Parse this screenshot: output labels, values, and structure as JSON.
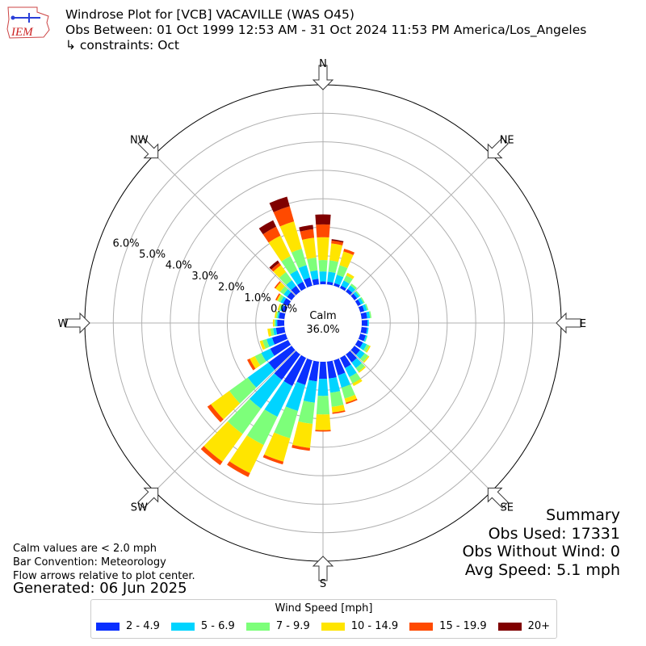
{
  "header": {
    "title_line1": "Windrose Plot for [VCB] VACAVILLE (WAS O45)",
    "title_line2": "Obs Between: 01 Oct 1999 12:53 AM - 31 Oct 2024 11:53 PM America/Los_Angeles",
    "title_line3": "↳ constraints: Oct",
    "logo_text": "IEM"
  },
  "notes": {
    "calm_note": "Calm values are < 2.0 mph",
    "bar_convention": "Bar Convention: Meteorology",
    "flow_arrows": "Flow arrows relative to plot center.",
    "generated": "Generated: 06 Jun 2025"
  },
  "summary": {
    "heading": "Summary",
    "obs_used": "Obs Used: 17331",
    "obs_without_wind": "Obs Without Wind: 0",
    "avg_speed": "Avg Speed: 5.1 mph"
  },
  "center": {
    "label": "Calm",
    "value": "36.0%"
  },
  "legend": {
    "title": "Wind Speed [mph]",
    "items": [
      {
        "label": "2 - 4.9",
        "color": "#0a2fff"
      },
      {
        "label": "5 - 6.9",
        "color": "#00d4ff"
      },
      {
        "label": "7 - 9.9",
        "color": "#7dff7a"
      },
      {
        "label": "10 - 14.9",
        "color": "#ffe500"
      },
      {
        "label": "15 - 19.9",
        "color": "#ff4a00"
      },
      {
        "label": "20+",
        "color": "#800000"
      }
    ]
  },
  "chart_data": {
    "type": "windrose",
    "directions": [
      {
        "label": "N",
        "angle": 0
      },
      {
        "label": "NE",
        "angle": 45
      },
      {
        "label": "E",
        "angle": 90
      },
      {
        "label": "SE",
        "angle": 135
      },
      {
        "label": "S",
        "angle": 180
      },
      {
        "label": "SW",
        "angle": 225
      },
      {
        "label": "W",
        "angle": 270
      },
      {
        "label": "NW",
        "angle": 315
      }
    ],
    "radial_ticks": [
      "0.0%",
      "1.0%",
      "2.0%",
      "3.0%",
      "4.0%",
      "5.0%",
      "6.0%"
    ],
    "radial_max": 7.0,
    "speed_bins": [
      "2 - 4.9",
      "5 - 6.9",
      "7 - 9.9",
      "10 - 14.9",
      "15 - 19.9",
      "20+"
    ],
    "bin_width_deg": 10,
    "bars": [
      {
        "dir": 0,
        "values": [
          0.1,
          0.35,
          0.4,
          0.8,
          0.45,
          0.35
        ]
      },
      {
        "dir": 10,
        "values": [
          0.1,
          0.35,
          0.4,
          0.6,
          0.1,
          0.05
        ]
      },
      {
        "dir": 20,
        "values": [
          0.1,
          0.3,
          0.35,
          0.5,
          0.1,
          0.0
        ]
      },
      {
        "dir": 30,
        "values": [
          0.1,
          0.2,
          0.2,
          0.1,
          0.0,
          0.0
        ]
      },
      {
        "dir": 40,
        "values": [
          0.12,
          0.15,
          0.08,
          0.0,
          0.0,
          0.0
        ]
      },
      {
        "dir": 50,
        "values": [
          0.12,
          0.1,
          0.05,
          0.0,
          0.0,
          0.0
        ]
      },
      {
        "dir": 60,
        "values": [
          0.12,
          0.1,
          0.05,
          0.0,
          0.0,
          0.0
        ]
      },
      {
        "dir": 70,
        "values": [
          0.15,
          0.1,
          0.05,
          0.0,
          0.0,
          0.0
        ]
      },
      {
        "dir": 80,
        "values": [
          0.2,
          0.1,
          0.05,
          0.0,
          0.0,
          0.0
        ]
      },
      {
        "dir": 90,
        "values": [
          0.2,
          0.05,
          0.0,
          0.0,
          0.0,
          0.0
        ]
      },
      {
        "dir": 100,
        "values": [
          0.2,
          0.05,
          0.0,
          0.0,
          0.0,
          0.0
        ]
      },
      {
        "dir": 110,
        "values": [
          0.2,
          0.05,
          0.02,
          0.0,
          0.0,
          0.0
        ]
      },
      {
        "dir": 120,
        "values": [
          0.2,
          0.15,
          0.1,
          0.05,
          0.0,
          0.0
        ]
      },
      {
        "dir": 130,
        "values": [
          0.25,
          0.2,
          0.15,
          0.05,
          0.0,
          0.0
        ]
      },
      {
        "dir": 140,
        "values": [
          0.35,
          0.25,
          0.15,
          0.05,
          0.0,
          0.0
        ]
      },
      {
        "dir": 150,
        "values": [
          0.4,
          0.35,
          0.25,
          0.1,
          0.0,
          0.0
        ]
      },
      {
        "dir": 160,
        "values": [
          0.55,
          0.45,
          0.4,
          0.15,
          0.05,
          0.0
        ]
      },
      {
        "dir": 170,
        "values": [
          0.6,
          0.5,
          0.5,
          0.2,
          0.05,
          0.0
        ]
      },
      {
        "dir": 180,
        "values": [
          0.6,
          0.6,
          0.65,
          0.55,
          0.05,
          0.0
        ]
      },
      {
        "dir": 190,
        "values": [
          0.7,
          0.75,
          0.75,
          0.85,
          0.1,
          0.0
        ]
      },
      {
        "dir": 200,
        "values": [
          0.9,
          0.95,
          1.0,
          0.85,
          0.1,
          0.0
        ]
      },
      {
        "dir": 210,
        "values": [
          1.1,
          1.2,
          1.1,
          1.1,
          0.15,
          0.0
        ]
      },
      {
        "dir": 220,
        "values": [
          1.1,
          1.25,
          1.1,
          1.2,
          0.15,
          0.0
        ]
      },
      {
        "dir": 230,
        "values": [
          1.0,
          0.9,
          0.8,
          0.8,
          0.15,
          0.0
        ]
      },
      {
        "dir": 240,
        "values": [
          0.7,
          0.35,
          0.25,
          0.2,
          0.1,
          0.0
        ]
      },
      {
        "dir": 250,
        "values": [
          0.5,
          0.2,
          0.15,
          0.1,
          0.0,
          0.0
        ]
      },
      {
        "dir": 260,
        "values": [
          0.3,
          0.1,
          0.1,
          0.1,
          0.0,
          0.0
        ]
      },
      {
        "dir": 270,
        "values": [
          0.25,
          0.05,
          0.05,
          0.05,
          0.0,
          0.0
        ]
      },
      {
        "dir": 280,
        "values": [
          0.2,
          0.05,
          0.05,
          0.05,
          0.0,
          0.0
        ]
      },
      {
        "dir": 290,
        "values": [
          0.15,
          0.05,
          0.05,
          0.05,
          0.0,
          0.0
        ]
      },
      {
        "dir": 300,
        "values": [
          0.2,
          0.1,
          0.1,
          0.05,
          0.05,
          0.0
        ]
      },
      {
        "dir": 310,
        "values": [
          0.2,
          0.15,
          0.15,
          0.2,
          0.05,
          0.0
        ]
      },
      {
        "dir": 320,
        "values": [
          0.25,
          0.25,
          0.35,
          0.3,
          0.1,
          0.1
        ]
      },
      {
        "dir": 330,
        "values": [
          0.25,
          0.45,
          0.55,
          0.8,
          0.35,
          0.25
        ]
      },
      {
        "dir": 340,
        "values": [
          0.3,
          0.45,
          0.6,
          1.0,
          0.55,
          0.35
        ]
      },
      {
        "dir": 350,
        "values": [
          0.2,
          0.3,
          0.45,
          0.7,
          0.3,
          0.15
        ]
      }
    ]
  }
}
